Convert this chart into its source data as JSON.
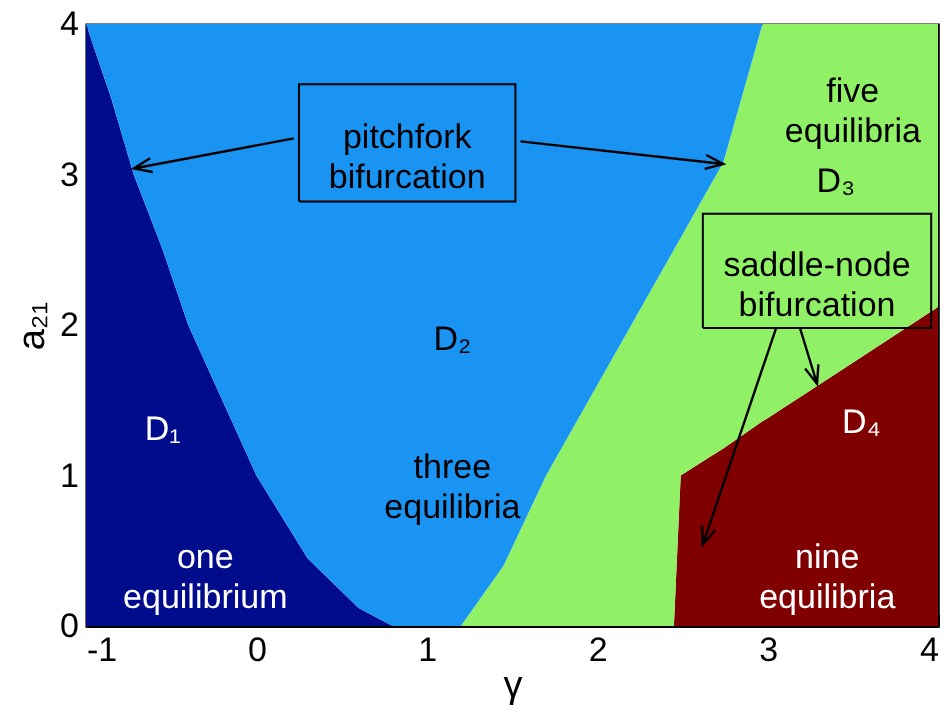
{
  "chart_data": {
    "type": "area",
    "xlabel": "γ",
    "ylabel": "a₂₁",
    "xlim": [
      -1,
      4
    ],
    "ylim": [
      0,
      4
    ],
    "xticks": [
      -1,
      0,
      1,
      2,
      3,
      4
    ],
    "yticks": [
      0,
      1,
      2,
      3,
      4
    ],
    "stacked": true,
    "x": [
      -1,
      -0.85,
      -0.72,
      -0.55,
      -0.4,
      -0.2,
      0,
      0.3,
      0.6,
      0.8,
      1.2,
      1.45,
      1.7,
      1.95,
      2.2,
      2.45,
      2.49,
      2.6,
      2.74,
      2.97,
      3,
      3.5,
      4
    ],
    "series": [
      {
        "color": "#000c8c",
        "values": [
          4,
          3.5,
          3,
          2.5,
          2,
          1.5,
          1,
          0.45,
          0.12,
          0,
          null,
          null,
          null,
          null,
          null,
          null,
          null,
          null,
          null,
          null,
          null,
          null,
          null
        ]
      },
      {
        "color": "#800000",
        "values": [
          null,
          null,
          null,
          null,
          null,
          null,
          null,
          null,
          null,
          null,
          null,
          null,
          null,
          null,
          null,
          0,
          1,
          1.08,
          1.18,
          1.36,
          1.38,
          1.75,
          2.12
        ]
      },
      {
        "color": "#90f066",
        "values": [
          null,
          null,
          null,
          null,
          null,
          null,
          null,
          null,
          null,
          null,
          0,
          0.4,
          1,
          1.5,
          2,
          2.5,
          1.58,
          1.72,
          1.9,
          2.64,
          2.62,
          2.25,
          1.88
        ]
      },
      {
        "color": "#1a94f2",
        "values": [
          0,
          0.5,
          1,
          1.5,
          2,
          2.5,
          3,
          3.55,
          3.88,
          4,
          4,
          3.6,
          3,
          2.5,
          2,
          1.5,
          1.42,
          1.2,
          0.92,
          0,
          null,
          null,
          null
        ]
      }
    ],
    "annotations": [
      "pitchfork bifurcation",
      "saddle-node bifurcation",
      "D₁",
      "one equilibrium",
      "D₂",
      "three equilibria",
      "D₃",
      "five equilibria",
      "D₄",
      "nine equilibria"
    ]
  }
}
